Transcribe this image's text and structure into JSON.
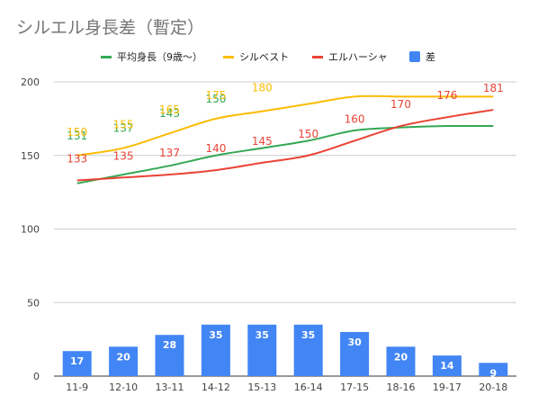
{
  "chart_data": {
    "type": "bar+line",
    "title": "シルエル身長差（暫定）",
    "categories": [
      "11-9",
      "12-10",
      "13-11",
      "14-12",
      "15-13",
      "16-14",
      "17-15",
      "18-16",
      "19-17",
      "20-18"
    ],
    "series": [
      {
        "name": "平均身長（9歳〜）",
        "kind": "line",
        "color": "#34a853",
        "values": [
          131,
          137,
          143,
          150,
          155,
          160,
          167,
          169,
          170,
          170
        ],
        "labels": [
          "131",
          "137",
          "143",
          "150",
          "",
          "",
          "",
          "",
          "",
          ""
        ]
      },
      {
        "name": "シルベスト",
        "kind": "line",
        "color": "#fbbc04",
        "values": [
          150,
          155,
          165,
          175,
          180,
          185,
          190,
          190,
          190,
          190
        ],
        "labels": [
          "150",
          "155",
          "165",
          "175",
          "180",
          "",
          "",
          "",
          "",
          ""
        ]
      },
      {
        "name": "エルハーシャ",
        "kind": "line",
        "color": "#ea4335",
        "values": [
          133,
          135,
          137,
          140,
          145,
          150,
          160,
          170,
          176,
          181
        ],
        "labels": [
          "133",
          "135",
          "137",
          "140",
          "145",
          "150",
          "160",
          "170",
          "176",
          "181"
        ]
      },
      {
        "name": "差",
        "kind": "bar",
        "color": "#4285f4",
        "values": [
          17,
          20,
          28,
          35,
          35,
          35,
          30,
          20,
          14,
          9
        ],
        "labels": [
          "17",
          "20",
          "28",
          "35",
          "35",
          "35",
          "30",
          "20",
          "14",
          "9"
        ]
      }
    ],
    "yticks": [
      "0",
      "50",
      "100",
      "150",
      "200"
    ],
    "ylim": [
      0,
      200
    ],
    "grid": true,
    "legend": "top"
  }
}
